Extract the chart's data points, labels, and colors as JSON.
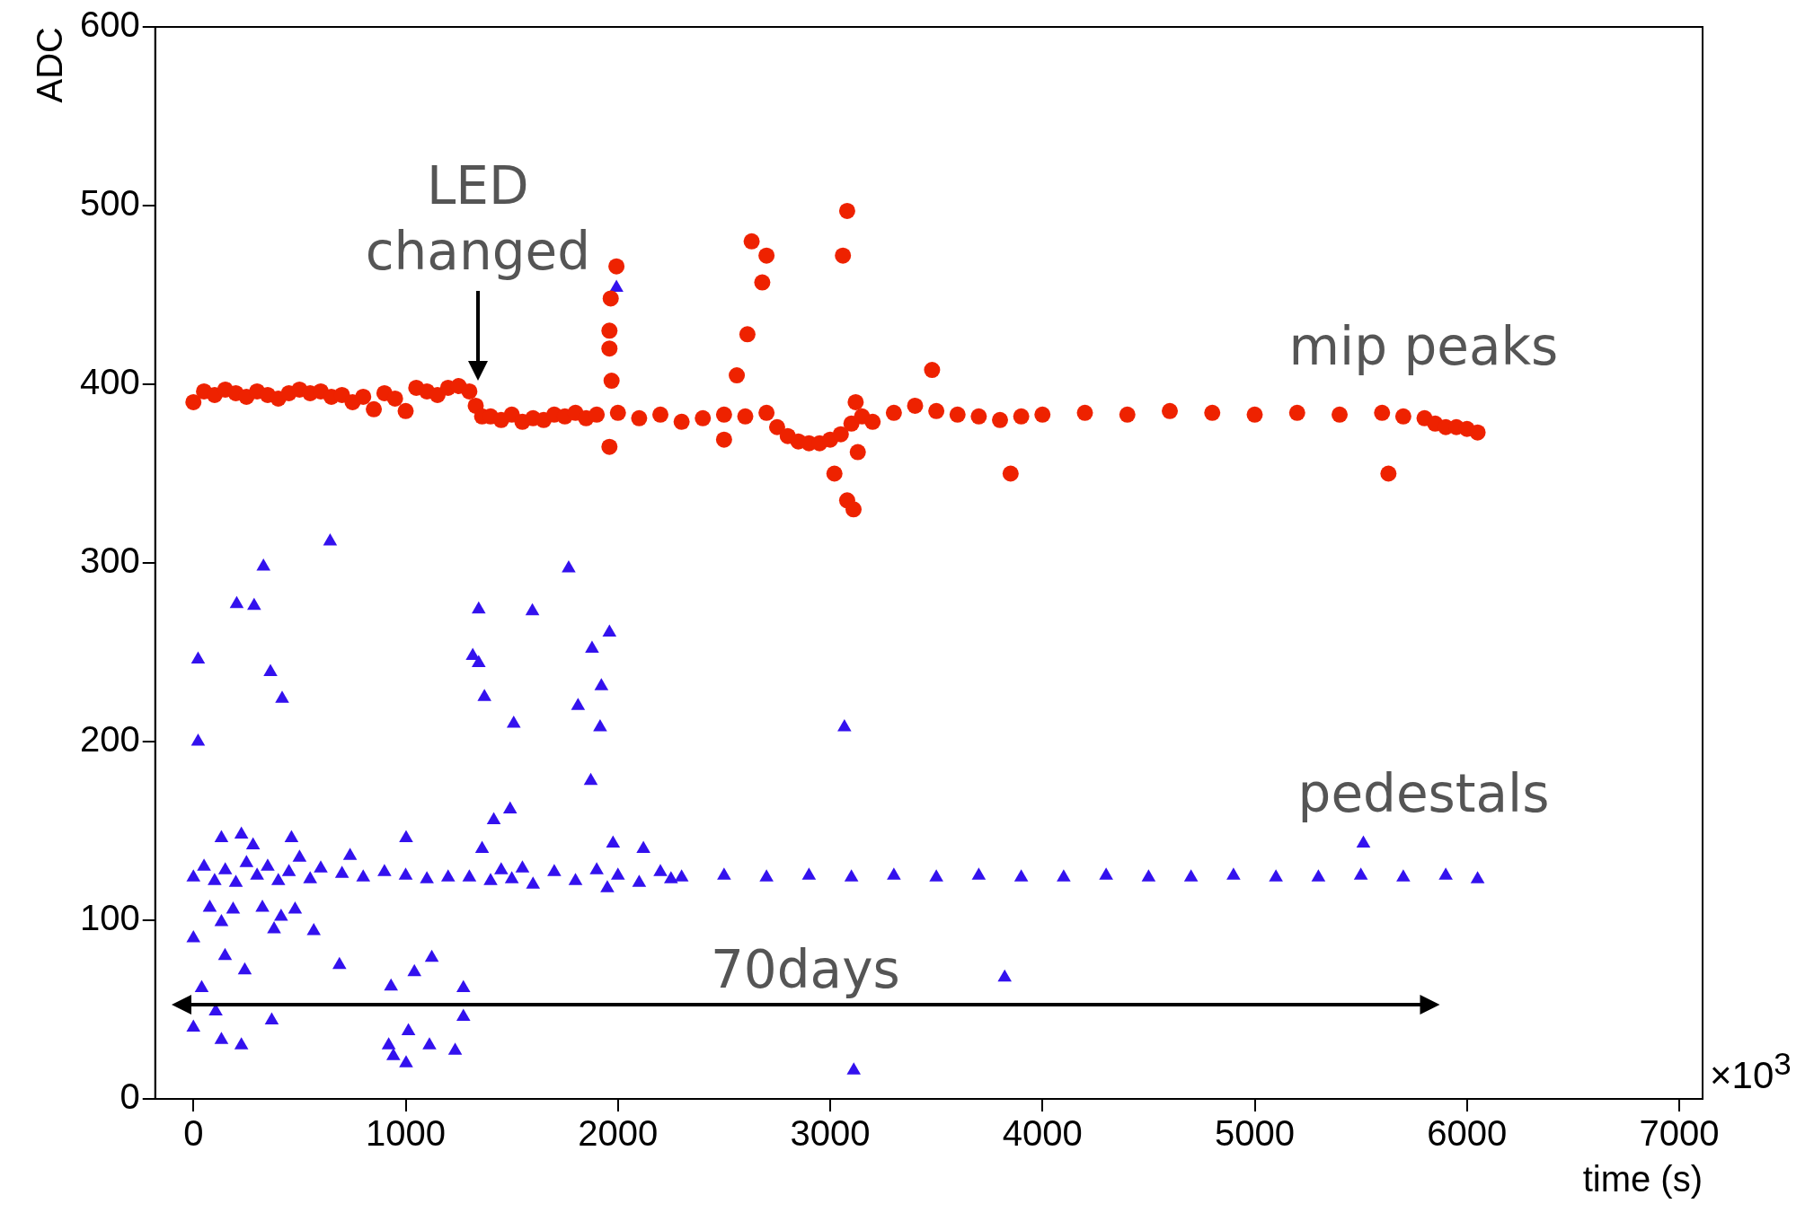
{
  "chart_data": {
    "type": "scatter",
    "xlabel": "time (s)",
    "ylabel": "ADC",
    "xlim": [
      -180,
      7110
    ],
    "ylim": [
      0,
      600
    ],
    "xticks": [
      0,
      1000,
      2000,
      3000,
      4000,
      5000,
      6000,
      7000
    ],
    "yticks": [
      0,
      100,
      200,
      300,
      400,
      500,
      600
    ],
    "grid": false,
    "legend": false,
    "series": [
      {
        "name": "mip peaks",
        "color": "#ee2200",
        "marker": "circle",
        "x": [
          0,
          50,
          100,
          150,
          200,
          250,
          300,
          350,
          400,
          450,
          500,
          550,
          600,
          650,
          700,
          750,
          800,
          850,
          900,
          950,
          1000,
          1050,
          1100,
          1150,
          1200,
          1250,
          1300,
          1330,
          1360,
          1400,
          1450,
          1500,
          1550,
          1600,
          1650,
          1700,
          1750,
          1800,
          1850,
          1900,
          2000,
          2100,
          2200,
          2300,
          2400,
          2500,
          2600,
          2700,
          2750,
          2800,
          2850,
          2900,
          2950,
          3000,
          3050,
          3100,
          3150,
          3200,
          3300,
          3400,
          3500,
          3600,
          3700,
          3800,
          3900,
          4000,
          4200,
          4400,
          4600,
          4800,
          5000,
          5200,
          5400,
          5600,
          5700,
          5800,
          5850,
          5900,
          5950,
          6000,
          6050,
          1993,
          1966,
          1960,
          1960,
          1970,
          1960,
          2500,
          2560,
          2610,
          2630,
          2680,
          2700,
          3020,
          3060,
          3080,
          3080,
          3110,
          3120,
          3130,
          3480,
          3850,
          5630
        ],
        "values": [
          390,
          396,
          394,
          397,
          395,
          393,
          396,
          394,
          392,
          395,
          397,
          395,
          396,
          393,
          394,
          390,
          393,
          386,
          395,
          392,
          385,
          398,
          396,
          394,
          398,
          399,
          396,
          388,
          382,
          382,
          380,
          383,
          379,
          381,
          380,
          383,
          382,
          384,
          381,
          383,
          384,
          381,
          383,
          379,
          381,
          383,
          382,
          384,
          376,
          371,
          368,
          367,
          367,
          369,
          372,
          378,
          382,
          379,
          384,
          388,
          385,
          383,
          382,
          380,
          382,
          383,
          384,
          383,
          385,
          384,
          383,
          384,
          383,
          384,
          382,
          381,
          378,
          376,
          376,
          375,
          373,
          466,
          448,
          430,
          420,
          402,
          365,
          369,
          405,
          428,
          480,
          457,
          472,
          350,
          472,
          497,
          335,
          330,
          390,
          362,
          408,
          350,
          350
        ]
      },
      {
        "name": "pedestals",
        "color": "#3311ee",
        "marker": "triangle",
        "x": [
          0,
          50,
          100,
          150,
          200,
          250,
          300,
          350,
          400,
          450,
          500,
          550,
          600,
          700,
          800,
          900,
          1000,
          1100,
          1200,
          1300,
          1400,
          1450,
          1500,
          1550,
          1600,
          1700,
          1800,
          1900,
          1950,
          2000,
          2100,
          2200,
          2250,
          2300,
          2500,
          2700,
          2900,
          3100,
          3300,
          3500,
          3700,
          3900,
          4100,
          4300,
          4500,
          4700,
          4900,
          5100,
          5300,
          5500,
          5700,
          5900,
          6050,
          22,
          22,
          330,
          204,
          286,
          363,
          418,
          644,
          1344,
          1316,
          1344,
          1371,
          1509,
          1597,
          1768,
          1812,
          1878,
          1922,
          1916,
          1872,
          1960,
          1993,
          3067,
          3822,
          3111,
          5512,
          1977,
          2120,
          0,
          39,
          105,
          132,
          226,
          369,
          688,
          931,
          920,
          942,
          1013,
          1041,
          1123,
          1112,
          1233,
          1272,
          1272,
          1002,
          0,
          77,
          132,
          187,
          242,
          149,
          325,
          380,
          479,
          567,
          413,
          132,
          226,
          281,
          462,
          1002,
          1360,
          1415,
          1492,
          738
        ],
        "values": [
          124,
          130,
          122,
          128,
          121,
          132,
          125,
          130,
          122,
          127,
          135,
          123,
          129,
          126,
          124,
          127,
          125,
          123,
          124,
          124,
          122,
          128,
          123,
          129,
          120,
          127,
          122,
          128,
          118,
          125,
          121,
          127,
          123,
          124,
          125,
          124,
          125,
          124,
          125,
          124,
          125,
          124,
          124,
          125,
          124,
          124,
          125,
          124,
          124,
          125,
          124,
          125,
          123,
          246,
          200,
          298,
          277,
          276,
          239,
          224,
          312,
          274,
          248,
          244,
          225,
          210,
          273,
          297,
          220,
          252,
          231,
          208,
          178,
          261,
          454,
          208,
          68,
          16,
          143,
          143,
          140,
          40,
          62,
          49,
          33,
          30,
          44,
          75,
          63,
          30,
          24,
          38,
          71,
          79,
          30,
          27,
          62,
          46,
          20,
          90,
          107,
          99,
          106,
          72,
          80,
          107,
          95,
          106,
          94,
          102,
          146,
          148,
          142,
          146,
          146,
          140,
          156,
          162,
          136
        ]
      }
    ],
    "annotations": [
      {
        "text": "LED changed",
        "x": 1340,
        "y": 400
      },
      "70days",
      "×10$^{3}$"
    ]
  }
}
